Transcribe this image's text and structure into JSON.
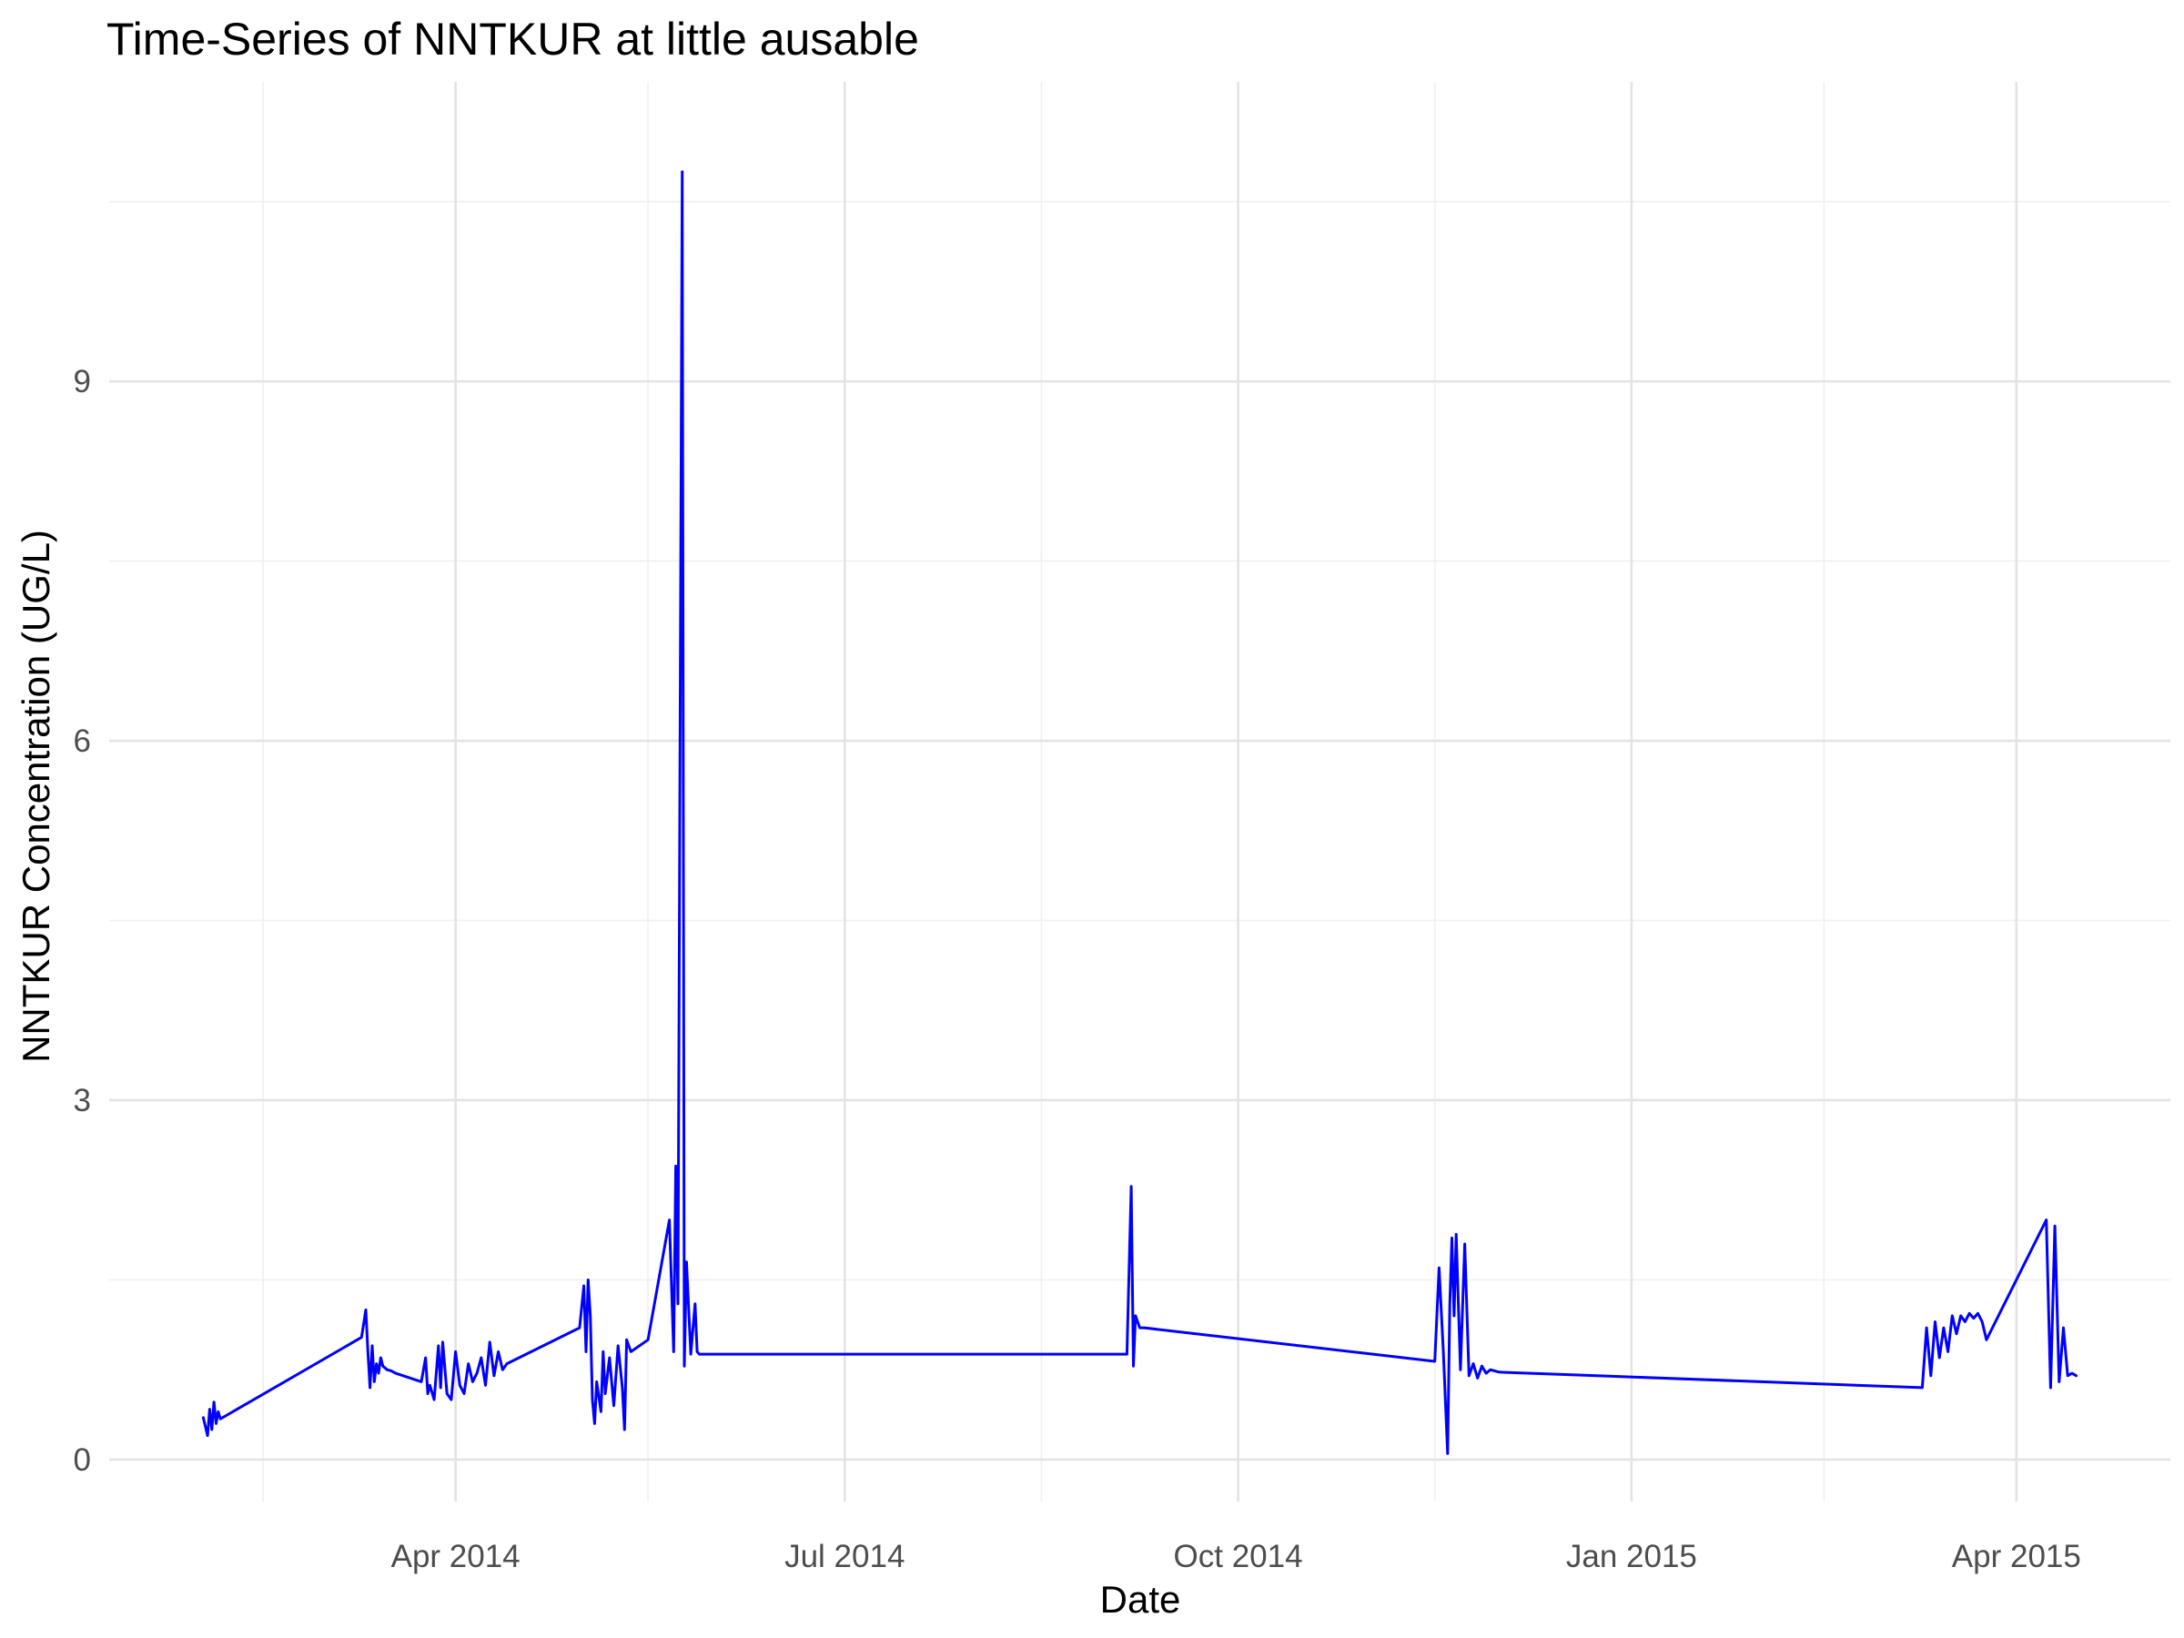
{
  "chart_data": {
    "type": "line",
    "title": "Time-Series of NNTKUR at little ausable",
    "xlabel": "Date",
    "ylabel": "NNTKUR Concentration (UG/L)",
    "x_type": "date",
    "xlim": [
      "2014-01-10",
      "2015-05-07"
    ],
    "ylim": [
      -0.35,
      11.5
    ],
    "grid": true,
    "legend": "none",
    "x_ticks": [
      {
        "date": "2014-04-01",
        "label": "Apr 2014"
      },
      {
        "date": "2014-07-01",
        "label": "Jul 2014"
      },
      {
        "date": "2014-10-01",
        "label": "Oct 2014"
      },
      {
        "date": "2015-01-01",
        "label": "Jan 2015"
      },
      {
        "date": "2015-04-01",
        "label": "Apr 2015"
      }
    ],
    "x_minor_ticks": [
      "2014-02-15",
      "2014-05-16",
      "2014-08-16",
      "2014-11-16",
      "2015-02-15"
    ],
    "y_ticks": [
      {
        "value": 0,
        "label": "0"
      },
      {
        "value": 3,
        "label": "3"
      },
      {
        "value": 6,
        "label": "6"
      },
      {
        "value": 9,
        "label": "9"
      }
    ],
    "y_minor_ticks": [
      1.5,
      4.5,
      7.5,
      10.5
    ],
    "series": [
      {
        "color": "#0000ff",
        "x": [
          "2014-02-01",
          "2014-02-02",
          "2014-02-02",
          "2014-02-03",
          "2014-02-03",
          "2014-02-04",
          "2014-02-04",
          "2014-02-05",
          "2014-03-10",
          "2014-03-11",
          "2014-03-11",
          "2014-03-12",
          "2014-03-12",
          "2014-03-13",
          "2014-03-13",
          "2014-03-14",
          "2014-03-14",
          "2014-03-15",
          "2014-03-16",
          "2014-03-17",
          "2014-03-18",
          "2014-03-24",
          "2014-03-25",
          "2014-03-25",
          "2014-03-26",
          "2014-03-27",
          "2014-03-28",
          "2014-03-28",
          "2014-03-29",
          "2014-03-30",
          "2014-03-31",
          "2014-04-01",
          "2014-04-02",
          "2014-04-03",
          "2014-04-04",
          "2014-04-05",
          "2014-04-06",
          "2014-04-07",
          "2014-04-08",
          "2014-04-09",
          "2014-04-10",
          "2014-04-11",
          "2014-04-12",
          "2014-04-13",
          "2014-04-30",
          "2014-05-01",
          "2014-05-01",
          "2014-05-02",
          "2014-05-02",
          "2014-05-03",
          "2014-05-03",
          "2014-05-04",
          "2014-05-05",
          "2014-05-05",
          "2014-05-06",
          "2014-05-07",
          "2014-05-08",
          "2014-05-09",
          "2014-05-10",
          "2014-05-10",
          "2014-05-11",
          "2014-05-12",
          "2014-05-16",
          "2014-05-21",
          "2014-05-22",
          "2014-05-22",
          "2014-05-23",
          "2014-05-24",
          "2014-05-24",
          "2014-05-25",
          "2014-05-26",
          "2014-05-27",
          "2014-05-27",
          "2014-05-28",
          "2014-05-29",
          "2014-05-30",
          "2014-05-31",
          "2014-09-05",
          "2014-09-06",
          "2014-09-06",
          "2014-09-07",
          "2014-09-08",
          "2014-09-08",
          "2014-09-09",
          "2014-11-16",
          "2014-11-17",
          "2014-11-18",
          "2014-11-19",
          "2014-11-19",
          "2014-11-20",
          "2014-11-20",
          "2014-11-21",
          "2014-11-22",
          "2014-11-23",
          "2014-11-24",
          "2014-11-25",
          "2014-11-26",
          "2014-11-27",
          "2014-11-28",
          "2014-11-29",
          "2014-11-30",
          "2014-12-01",
          "2015-03-10",
          "2015-03-11",
          "2015-03-12",
          "2015-03-13",
          "2015-03-14",
          "2015-03-15",
          "2015-03-16",
          "2015-03-17",
          "2015-03-18",
          "2015-03-19",
          "2015-03-20",
          "2015-03-21",
          "2015-03-22",
          "2015-03-23",
          "2015-03-24",
          "2015-03-25",
          "2015-04-08",
          "2015-04-09",
          "2015-04-10",
          "2015-04-11",
          "2015-04-12",
          "2015-04-13",
          "2015-04-14",
          "2015-04-15"
        ],
        "values": [
          0.35,
          0.2,
          0.42,
          0.25,
          0.48,
          0.3,
          0.4,
          0.34,
          1.02,
          1.25,
          0.9,
          0.6,
          0.95,
          0.65,
          0.8,
          0.72,
          0.85,
          0.78,
          0.75,
          0.74,
          0.72,
          0.65,
          0.85,
          0.55,
          0.62,
          0.5,
          0.95,
          0.6,
          0.98,
          0.55,
          0.5,
          0.9,
          0.62,
          0.55,
          0.8,
          0.65,
          0.72,
          0.85,
          0.62,
          0.98,
          0.7,
          0.9,
          0.75,
          0.8,
          1.1,
          1.45,
          0.9,
          1.5,
          1.2,
          0.5,
          0.3,
          0.65,
          0.4,
          0.9,
          0.55,
          0.85,
          0.45,
          0.95,
          0.6,
          0.25,
          1.0,
          0.9,
          1.0,
          2.0,
          0.9,
          2.45,
          1.3,
          10.75,
          0.78,
          1.65,
          0.88,
          1.3,
          0.9,
          0.88,
          0.88,
          0.88,
          0.88,
          0.88,
          2.28,
          0.78,
          1.2,
          1.1,
          1.1,
          1.1,
          0.82,
          1.6,
          0.9,
          0.05,
          1.3,
          1.85,
          1.2,
          1.88,
          0.75,
          1.8,
          0.7,
          0.8,
          0.68,
          0.78,
          0.72,
          0.75,
          0.74,
          0.73,
          0.6,
          1.1,
          0.7,
          1.15,
          0.85,
          1.1,
          0.9,
          1.2,
          1.05,
          1.2,
          1.15,
          1.22,
          1.18,
          1.22,
          1.15,
          1.0,
          2.0,
          0.6,
          1.95,
          0.65,
          1.1,
          0.7,
          0.72,
          0.7
        ]
      }
    ]
  }
}
